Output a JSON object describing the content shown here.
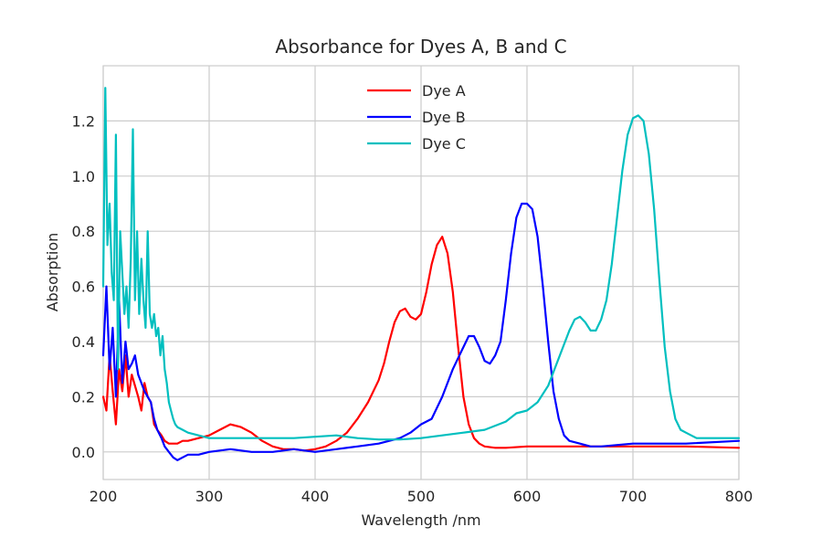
{
  "chart_data": {
    "type": "line",
    "title": "Absorbance for Dyes A, B and C",
    "xlabel": "Wavelength /nm",
    "ylabel": "Absorption",
    "xlim": [
      200,
      800
    ],
    "ylim": [
      -0.1,
      1.4
    ],
    "xticks": [
      200,
      300,
      400,
      500,
      600,
      700,
      800
    ],
    "yticks": [
      0.0,
      0.2,
      0.4,
      0.6,
      0.8,
      1.0,
      1.2
    ],
    "grid": true,
    "legend_position": "top-center",
    "series": [
      {
        "name": "Dye A",
        "color": "#ff0000",
        "x": [
          200,
          203,
          206,
          209,
          212,
          215,
          218,
          221,
          224,
          227,
          230,
          233,
          236,
          239,
          242,
          245,
          248,
          251,
          255,
          258,
          262,
          266,
          270,
          275,
          280,
          290,
          300,
          310,
          320,
          330,
          340,
          350,
          360,
          370,
          380,
          390,
          400,
          410,
          420,
          430,
          440,
          450,
          455,
          460,
          465,
          470,
          475,
          480,
          485,
          490,
          495,
          500,
          505,
          510,
          515,
          520,
          525,
          530,
          535,
          540,
          545,
          550,
          555,
          560,
          570,
          580,
          600,
          650,
          700,
          750,
          800
        ],
        "y": [
          0.2,
          0.15,
          0.35,
          0.22,
          0.1,
          0.3,
          0.22,
          0.35,
          0.2,
          0.28,
          0.24,
          0.2,
          0.15,
          0.25,
          0.2,
          0.18,
          0.1,
          0.08,
          0.06,
          0.04,
          0.03,
          0.03,
          0.03,
          0.04,
          0.04,
          0.05,
          0.06,
          0.08,
          0.1,
          0.09,
          0.07,
          0.04,
          0.02,
          0.01,
          0.01,
          0.005,
          0.01,
          0.02,
          0.04,
          0.07,
          0.12,
          0.18,
          0.22,
          0.26,
          0.32,
          0.4,
          0.47,
          0.51,
          0.52,
          0.49,
          0.48,
          0.5,
          0.58,
          0.68,
          0.75,
          0.78,
          0.72,
          0.58,
          0.38,
          0.2,
          0.1,
          0.05,
          0.03,
          0.02,
          0.015,
          0.015,
          0.02,
          0.02,
          0.02,
          0.02,
          0.015
        ]
      },
      {
        "name": "Dye B",
        "color": "#0000ff",
        "x": [
          200,
          203,
          206,
          209,
          212,
          215,
          218,
          221,
          224,
          227,
          230,
          233,
          236,
          239,
          242,
          245,
          248,
          251,
          255,
          258,
          262,
          266,
          270,
          275,
          280,
          290,
          300,
          320,
          340,
          360,
          380,
          400,
          420,
          440,
          460,
          480,
          490,
          500,
          510,
          520,
          530,
          540,
          545,
          550,
          555,
          560,
          565,
          570,
          575,
          580,
          585,
          590,
          595,
          600,
          605,
          610,
          615,
          620,
          625,
          630,
          635,
          640,
          650,
          660,
          670,
          700,
          750,
          800
        ],
        "y": [
          0.35,
          0.6,
          0.3,
          0.45,
          0.2,
          0.55,
          0.25,
          0.4,
          0.3,
          0.32,
          0.35,
          0.28,
          0.25,
          0.22,
          0.2,
          0.18,
          0.12,
          0.08,
          0.05,
          0.02,
          0.0,
          -0.02,
          -0.03,
          -0.02,
          -0.01,
          -0.01,
          0.0,
          0.01,
          0.0,
          0.0,
          0.01,
          0.0,
          0.01,
          0.02,
          0.03,
          0.05,
          0.07,
          0.1,
          0.12,
          0.2,
          0.3,
          0.38,
          0.42,
          0.42,
          0.38,
          0.33,
          0.32,
          0.35,
          0.4,
          0.55,
          0.72,
          0.85,
          0.9,
          0.9,
          0.88,
          0.78,
          0.6,
          0.4,
          0.22,
          0.12,
          0.06,
          0.04,
          0.03,
          0.02,
          0.02,
          0.03,
          0.03,
          0.04
        ]
      },
      {
        "name": "Dye C",
        "color": "#00bfbf",
        "x": [
          200,
          202,
          204,
          206,
          208,
          210,
          212,
          214,
          216,
          218,
          220,
          222,
          224,
          226,
          228,
          230,
          232,
          234,
          236,
          238,
          240,
          242,
          244,
          246,
          248,
          250,
          252,
          254,
          256,
          258,
          260,
          262,
          264,
          266,
          268,
          270,
          275,
          280,
          290,
          300,
          320,
          340,
          360,
          380,
          400,
          420,
          440,
          460,
          480,
          500,
          520,
          540,
          560,
          580,
          590,
          600,
          610,
          620,
          630,
          640,
          645,
          650,
          655,
          660,
          665,
          670,
          675,
          680,
          685,
          690,
          695,
          700,
          705,
          710,
          715,
          720,
          725,
          730,
          735,
          740,
          745,
          750,
          755,
          760,
          770,
          780,
          790,
          800
        ],
        "y": [
          0.6,
          1.32,
          0.75,
          0.9,
          0.65,
          0.55,
          1.15,
          0.3,
          0.8,
          0.65,
          0.5,
          0.6,
          0.45,
          0.7,
          1.17,
          0.55,
          0.8,
          0.5,
          0.7,
          0.55,
          0.45,
          0.8,
          0.5,
          0.45,
          0.5,
          0.42,
          0.45,
          0.35,
          0.42,
          0.3,
          0.25,
          0.18,
          0.15,
          0.12,
          0.1,
          0.09,
          0.08,
          0.07,
          0.06,
          0.05,
          0.05,
          0.05,
          0.05,
          0.05,
          0.055,
          0.06,
          0.05,
          0.045,
          0.045,
          0.05,
          0.06,
          0.07,
          0.08,
          0.11,
          0.14,
          0.15,
          0.18,
          0.24,
          0.34,
          0.44,
          0.48,
          0.49,
          0.47,
          0.44,
          0.44,
          0.48,
          0.55,
          0.68,
          0.85,
          1.02,
          1.15,
          1.21,
          1.22,
          1.2,
          1.08,
          0.88,
          0.62,
          0.38,
          0.22,
          0.12,
          0.08,
          0.07,
          0.06,
          0.05,
          0.05,
          0.05,
          0.05,
          0.05
        ]
      }
    ]
  }
}
